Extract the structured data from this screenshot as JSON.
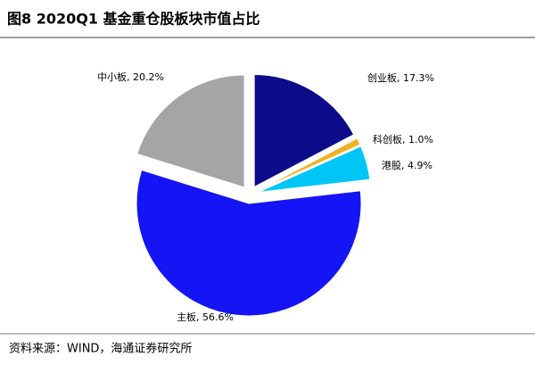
{
  "chart_data": {
    "type": "pie",
    "title": "图8  2020Q1 基金重仓股板块市值占比",
    "values": [
      17.3,
      1.0,
      4.9,
      56.6,
      20.2
    ],
    "value_labels": [
      "创业板, 17.3%",
      "科创板, 1.0%",
      "港股, 4.9%",
      "主板, 56.6%",
      "中小板, 20.2%"
    ],
    "colors": [
      "#0c0c8a",
      "#f2b122",
      "#00c6f7",
      "#1414f5",
      "#a5a5a5"
    ],
    "source": "资料来源：WIND，海通证券研究所"
  }
}
